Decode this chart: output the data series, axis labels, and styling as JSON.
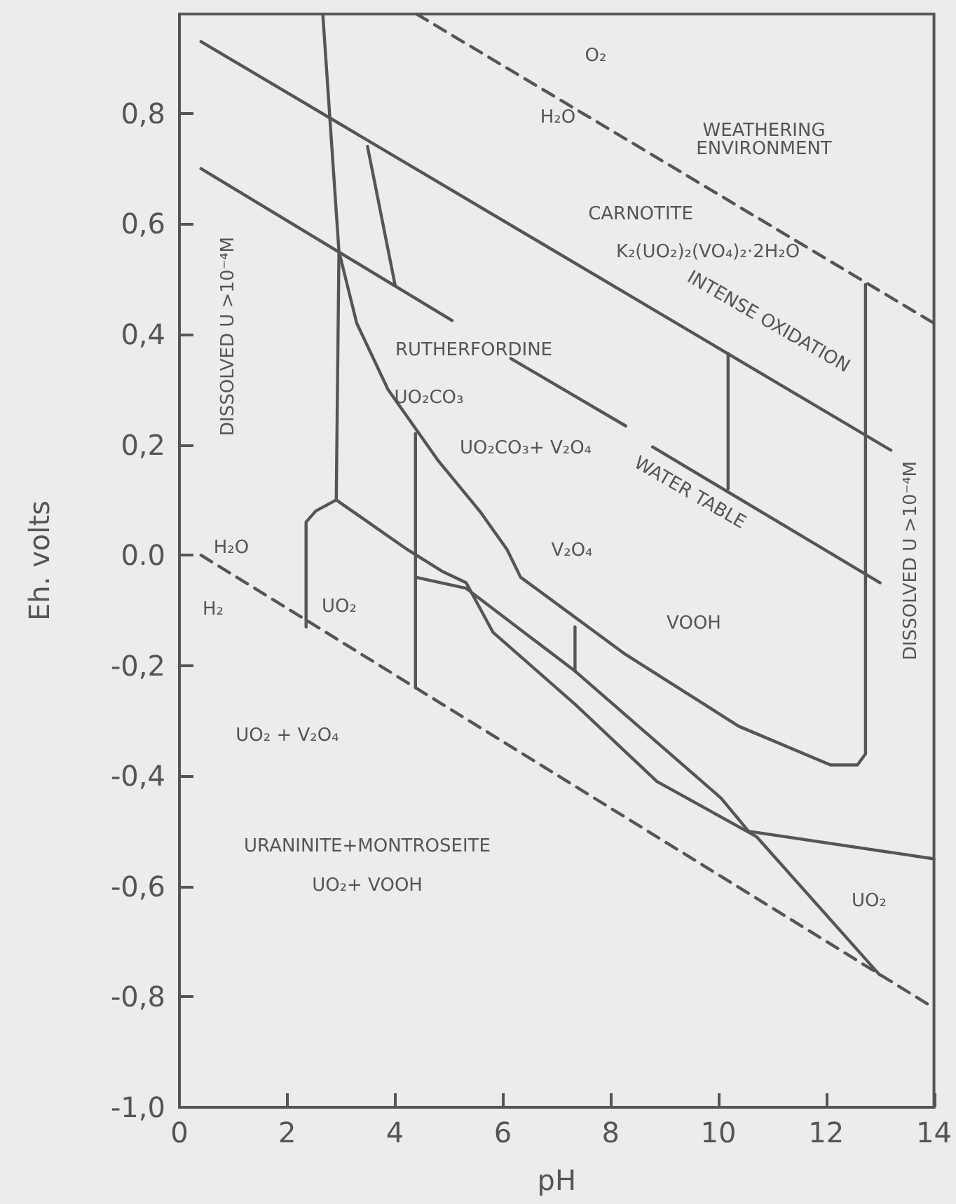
{
  "chart_data": {
    "type": "line",
    "xlabel": "pH",
    "ylabel": "Eh. volts",
    "xlim": [
      0,
      14
    ],
    "ylim": [
      -1.0,
      0.98
    ],
    "xticks": [
      0,
      2,
      4,
      6,
      8,
      10,
      12,
      14
    ],
    "yticks": [
      {
        "value": 0.8,
        "label": "0,8"
      },
      {
        "value": 0.6,
        "label": "0,6"
      },
      {
        "value": 0.4,
        "label": "0,4"
      },
      {
        "value": 0.2,
        "label": "0,2"
      },
      {
        "value": 0,
        "label": "0.0"
      },
      {
        "value": -0.2,
        "label": "-0,2"
      },
      {
        "value": -0.4,
        "label": "-0,4"
      },
      {
        "value": -0.6,
        "label": "-0,6"
      },
      {
        "value": -0.8,
        "label": "-0,8"
      },
      {
        "value": -1.0,
        "label": "-1,0"
      }
    ],
    "marker": "none",
    "series": [
      {
        "color": "#555555",
        "line_style": "dashed",
        "x": [
          4.4,
          14
        ],
        "values": [
          0.98,
          0.42
        ]
      },
      {
        "color": "#555555",
        "line_style": "dashed",
        "x": [
          0.4,
          14
        ],
        "values": [
          0.0,
          -0.82
        ]
      },
      {
        "color": "#555555",
        "line_style": "solid",
        "x": [
          0.4,
          13.2
        ],
        "values": [
          0.93,
          0.19
        ]
      },
      {
        "color": "#555555",
        "line_style": "solid",
        "x": [
          0.4,
          5.06
        ],
        "values": [
          0.7,
          0.425
        ]
      },
      {
        "color": "#555555",
        "line_style": "solid",
        "x": [
          6.15,
          8.28
        ],
        "values": [
          0.356,
          0.234
        ]
      },
      {
        "color": "#555555",
        "line_style": "solid",
        "x": [
          8.78,
          13.0
        ],
        "values": [
          0.196,
          -0.05
        ]
      },
      {
        "color": "#555555",
        "line_style": "solid",
        "x": [
          2.66,
          2.96,
          2.91
        ],
        "values": [
          0.98,
          0.55,
          0.1
        ]
      },
      {
        "color": "#555555",
        "line_style": "solid",
        "x": [
          2.96,
          3.29,
          3.87,
          4.81,
          5.57,
          6.08,
          6.33,
          8.28,
          10.38,
          12.08,
          12.58,
          12.73,
          12.73
        ],
        "values": [
          0.55,
          0.42,
          0.3,
          0.17,
          0.08,
          0.01,
          -0.04,
          -0.18,
          -0.31,
          -0.38,
          -0.38,
          -0.36,
          0.49
        ]
      },
      {
        "color": "#555555",
        "line_style": "solid",
        "x": [
          2.91,
          2.53,
          2.35,
          2.35
        ],
        "values": [
          0.1,
          0.08,
          0.06,
          -0.13
        ]
      },
      {
        "color": "#555555",
        "line_style": "solid",
        "x": [
          2.91,
          4.23,
          4.89,
          5.32,
          5.82,
          7.34,
          8.86,
          10.71,
          12.99
        ],
        "values": [
          0.1,
          0.01,
          -0.03,
          -0.05,
          -0.14,
          -0.27,
          -0.41,
          -0.51,
          -0.76
        ]
      },
      {
        "color": "#555555",
        "line_style": "solid",
        "x": [
          4.38,
          5.32,
          7.34,
          10.05,
          10.56,
          14
        ],
        "values": [
          -0.04,
          -0.06,
          -0.21,
          -0.44,
          -0.5,
          -0.55
        ]
      },
      {
        "color": "#555555",
        "line_style": "solid",
        "x": [
          4.38,
          4.38
        ],
        "values": [
          0.22,
          -0.24
        ]
      },
      {
        "color": "#555555",
        "line_style": "solid",
        "x": [
          7.34,
          7.34
        ],
        "values": [
          -0.13,
          -0.21
        ]
      },
      {
        "color": "#555555",
        "line_style": "solid",
        "x": [
          3.49,
          4.0
        ],
        "values": [
          0.74,
          0.49
        ]
      },
      {
        "color": "#555555",
        "line_style": "solid",
        "x": [
          10.18,
          10.18
        ],
        "values": [
          0.365,
          0.12
        ]
      }
    ],
    "annotations": [
      "O₂",
      "H₂O",
      "WEATHERING\nENVIRONMENT",
      "CARNOTITE",
      "K₂(UO₂)₂(VO₄)₂·2H₂O",
      "INTENSE OXIDATION",
      "RUTHERFORDINE",
      "UO₂CO₃",
      "UO₂CO₃+ V₂O₄",
      "WATER TABLE",
      "DISSOLVED U >10⁻⁴M",
      "DISSOLVED U >10⁻⁴M",
      "H₂O",
      "H₂",
      "UO₂",
      "V₂O₄",
      "VOOH",
      "UO₂ + V₂O₄",
      "URANINITE+MONTROSEITE",
      "UO₂+ VOOH",
      "UO₂"
    ]
  }
}
